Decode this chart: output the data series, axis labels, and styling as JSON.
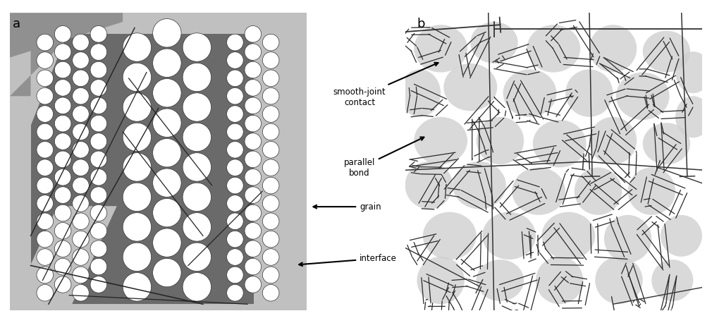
{
  "fig_width": 10.1,
  "fig_height": 4.58,
  "bg_color": "#ffffff",
  "label_a": "a",
  "label_b": "b",
  "panel_a": {
    "bg_outer_light": "#c0c0c0",
    "bg_dark": "#6a6a6a",
    "bg_medium": "#909090",
    "ball_fill": "#ffffff",
    "ball_edge": "#333333",
    "crack_color": "#222222"
  },
  "panel_b": {
    "blob_color": "#d0d0d0",
    "poly_edge": "#2a2a2a",
    "crack_color": "#333333",
    "bg_color": "#ffffff"
  },
  "annotations": {
    "smooth_joint": "smooth-joint\ncontact",
    "parallel_bond": "parallel\nbond",
    "grain": "grain",
    "interface": "interface"
  },
  "panel_a_balls": {
    "r_small": 0.028,
    "r_large": 0.048,
    "r_medium": 0.033
  }
}
